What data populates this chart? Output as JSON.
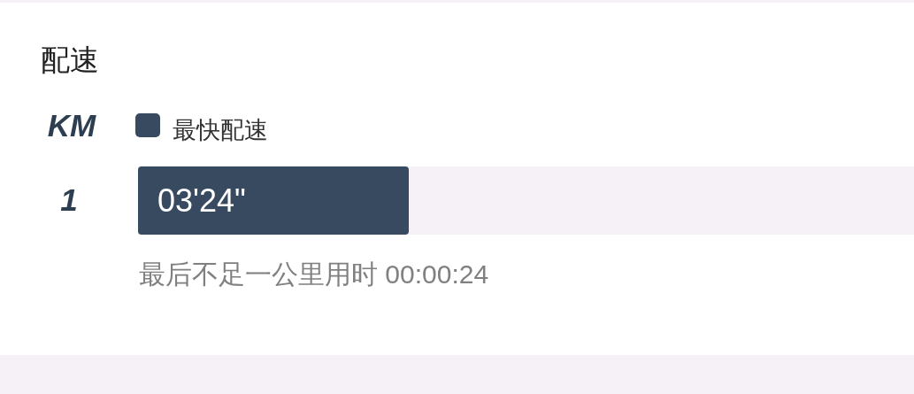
{
  "chart_data": {
    "type": "bar",
    "orientation": "horizontal",
    "title": "配速",
    "ylabel": "KM",
    "categories": [
      "1"
    ],
    "series": [
      {
        "name": "最快配速",
        "color": "#374a5f",
        "values": [
          3.4
        ],
        "value_labels": [
          "03'24\""
        ]
      }
    ],
    "legend": "top left",
    "annotations": [
      "最后不足一公里用时 00:00:24"
    ]
  }
}
